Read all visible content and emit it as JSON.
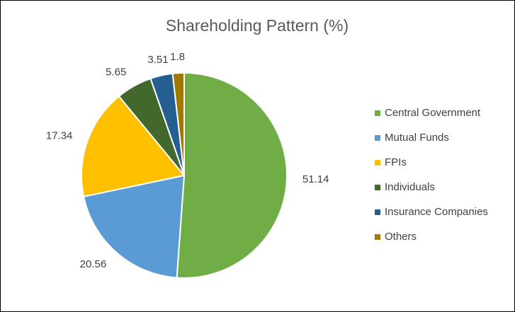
{
  "chart_data": {
    "type": "pie",
    "title": "Shareholding Pattern (%)",
    "categories": [
      "Central Government",
      "Mutual Funds",
      "FPIs",
      "Individuals",
      "Insurance Companies",
      "Others"
    ],
    "values": [
      51.14,
      20.56,
      17.34,
      5.65,
      3.51,
      1.8
    ],
    "colors": [
      "#70ad47",
      "#5b9bd5",
      "#ffc000",
      "#43682b",
      "#255e91",
      "#9e7a00"
    ],
    "legend": "right"
  }
}
